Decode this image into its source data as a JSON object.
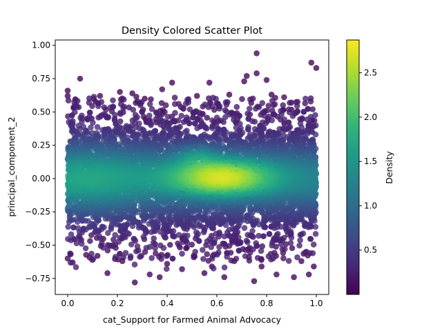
{
  "chart_data": {
    "type": "scatter",
    "title": "Density Colored Scatter Plot",
    "xlabel": "cat_Support for Farmed Animal Advocacy",
    "ylabel": "principal_component_2",
    "xlim": [
      -0.05,
      1.05
    ],
    "ylim": [
      -0.87,
      1.04
    ],
    "xticks": [
      "0.0",
      "0.2",
      "0.4",
      "0.6",
      "0.8",
      "1.0"
    ],
    "xtick_values": [
      0.0,
      0.2,
      0.4,
      0.6,
      0.8,
      1.0
    ],
    "yticks": [
      "−0.75",
      "−0.50",
      "−0.25",
      "0.00",
      "0.25",
      "0.50",
      "0.75",
      "1.00"
    ],
    "ytick_values": [
      -0.75,
      -0.5,
      -0.25,
      0.0,
      0.25,
      0.5,
      0.75,
      1.0
    ],
    "colormap": "viridis",
    "point_alpha": 0.8,
    "grid": false,
    "density_peak": {
      "x": 0.62,
      "y": 0.01
    },
    "x_range_of_points": [
      0.0,
      1.0
    ],
    "y_range_of_points": [
      -0.78,
      0.94
    ],
    "colorbar": {
      "label": "Density",
      "range": [
        0.0,
        2.87
      ],
      "ticks": [
        "0.5",
        "1.0",
        "1.5",
        "2.0",
        "2.5"
      ],
      "tick_values": [
        0.5,
        1.0,
        1.5,
        2.0,
        2.5
      ]
    },
    "outlier_points": [
      {
        "x": 0.76,
        "y": 0.94
      },
      {
        "x": 0.98,
        "y": 0.87
      },
      {
        "x": 1.0,
        "y": 0.83
      },
      {
        "x": 0.05,
        "y": 0.75
      },
      {
        "x": 0.76,
        "y": 0.79
      },
      {
        "x": 0.72,
        "y": 0.77
      },
      {
        "x": 0.71,
        "y": 0.73
      },
      {
        "x": 0.57,
        "y": 0.72
      },
      {
        "x": 0.42,
        "y": 0.72
      },
      {
        "x": 0.8,
        "y": 0.74
      },
      {
        "x": 0.13,
        "y": 0.62
      },
      {
        "x": 0.21,
        "y": 0.65
      },
      {
        "x": 0.31,
        "y": 0.6
      },
      {
        "x": 0.26,
        "y": 0.64
      },
      {
        "x": 0.38,
        "y": 0.67
      },
      {
        "x": 0.52,
        "y": 0.62
      },
      {
        "x": 0.65,
        "y": 0.63
      },
      {
        "x": 0.82,
        "y": 0.63
      },
      {
        "x": 0.9,
        "y": 0.57
      },
      {
        "x": 0.0,
        "y": 0.66
      },
      {
        "x": 0.0,
        "y": 0.62
      },
      {
        "x": 0.33,
        "y": -0.72
      },
      {
        "x": 0.16,
        "y": -0.71
      },
      {
        "x": 0.27,
        "y": -0.78
      },
      {
        "x": 0.37,
        "y": -0.74
      },
      {
        "x": 0.55,
        "y": -0.71
      },
      {
        "x": 0.75,
        "y": -0.77
      },
      {
        "x": 0.63,
        "y": -0.74
      },
      {
        "x": 0.91,
        "y": -0.74
      },
      {
        "x": 0.97,
        "y": -0.72
      },
      {
        "x": 0.84,
        "y": -0.72
      },
      {
        "x": 0.46,
        "y": -0.68
      },
      {
        "x": 0.02,
        "y": -0.63
      },
      {
        "x": 0.22,
        "y": -0.62
      },
      {
        "x": 0.4,
        "y": -0.64
      },
      {
        "x": 0.67,
        "y": -0.62
      },
      {
        "x": 0.94,
        "y": -0.62
      },
      {
        "x": 0.0,
        "y": -0.6
      },
      {
        "x": 0.12,
        "y": -0.58
      },
      {
        "x": 0.58,
        "y": -0.66
      },
      {
        "x": 0.78,
        "y": -0.66
      },
      {
        "x": 0.99,
        "y": -0.66
      }
    ]
  }
}
